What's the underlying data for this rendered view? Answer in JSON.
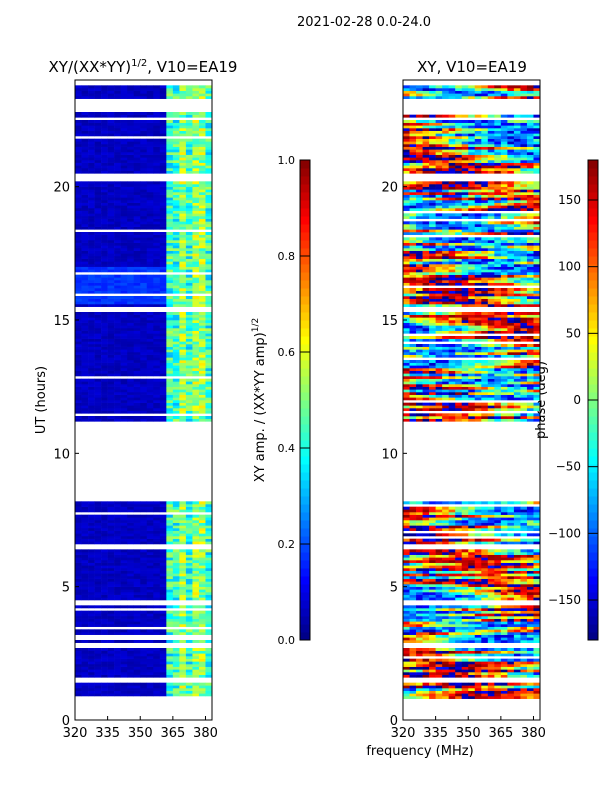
{
  "suptitle": "2021-02-28 0.0-24.0",
  "xlabel": "frequency (MHz)",
  "chart_data": [
    {
      "type": "heatmap",
      "title": "XY/(XX*YY)",
      "title_sup": "1/2",
      "title_suffix": ", V10=EA19",
      "ylabel": "UT (hours)",
      "xlim": [
        320,
        383
      ],
      "ylim": [
        0,
        24
      ],
      "xticks": [
        "320",
        "335",
        "350",
        "365",
        "380"
      ],
      "yticks": [
        "0",
        "5",
        "10",
        "15",
        "20"
      ],
      "colorbar": {
        "label": "XY amp. / (XX*YY amp)",
        "label_sup": "1/2",
        "range": [
          0,
          1
        ],
        "ticks": [
          "0.0",
          "0.2",
          "0.4",
          "0.6",
          "0.8",
          "1.0"
        ]
      },
      "data_segments_hours": [
        [
          0.8,
          1.4
        ],
        [
          1.6,
          2.7
        ],
        [
          2.9,
          4.3
        ],
        [
          4.5,
          6.4
        ],
        [
          6.6,
          8.2
        ],
        [
          11.2,
          15.3
        ],
        [
          15.5,
          20.2
        ],
        [
          20.5,
          22.5
        ],
        [
          22.6,
          22.8
        ],
        [
          23.3,
          23.8
        ]
      ],
      "description_values": {
        "low_band_amp": 0.05,
        "high_band_365_380_amp": 0.4
      }
    },
    {
      "type": "heatmap",
      "title": "XY, V10=EA19",
      "xlim": [
        320,
        383
      ],
      "ylim": [
        0,
        24
      ],
      "xticks": [
        "320",
        "335",
        "350",
        "365",
        "380"
      ],
      "yticks": [
        "0",
        "5",
        "10",
        "15",
        "20"
      ],
      "colorbar": {
        "label": "phase (deg)",
        "range": [
          -180,
          180
        ],
        "ticks": [
          "150",
          "100",
          "50",
          "0",
          "−50",
          "−100",
          "−150"
        ]
      },
      "data_segments_hours": [
        [
          0.8,
          1.4
        ],
        [
          1.6,
          2.7
        ],
        [
          2.9,
          4.3
        ],
        [
          4.5,
          6.4
        ],
        [
          6.6,
          8.2
        ],
        [
          11.2,
          15.3
        ],
        [
          15.5,
          20.2
        ],
        [
          20.5,
          22.5
        ],
        [
          22.6,
          22.8
        ],
        [
          23.3,
          23.8
        ]
      ]
    }
  ]
}
